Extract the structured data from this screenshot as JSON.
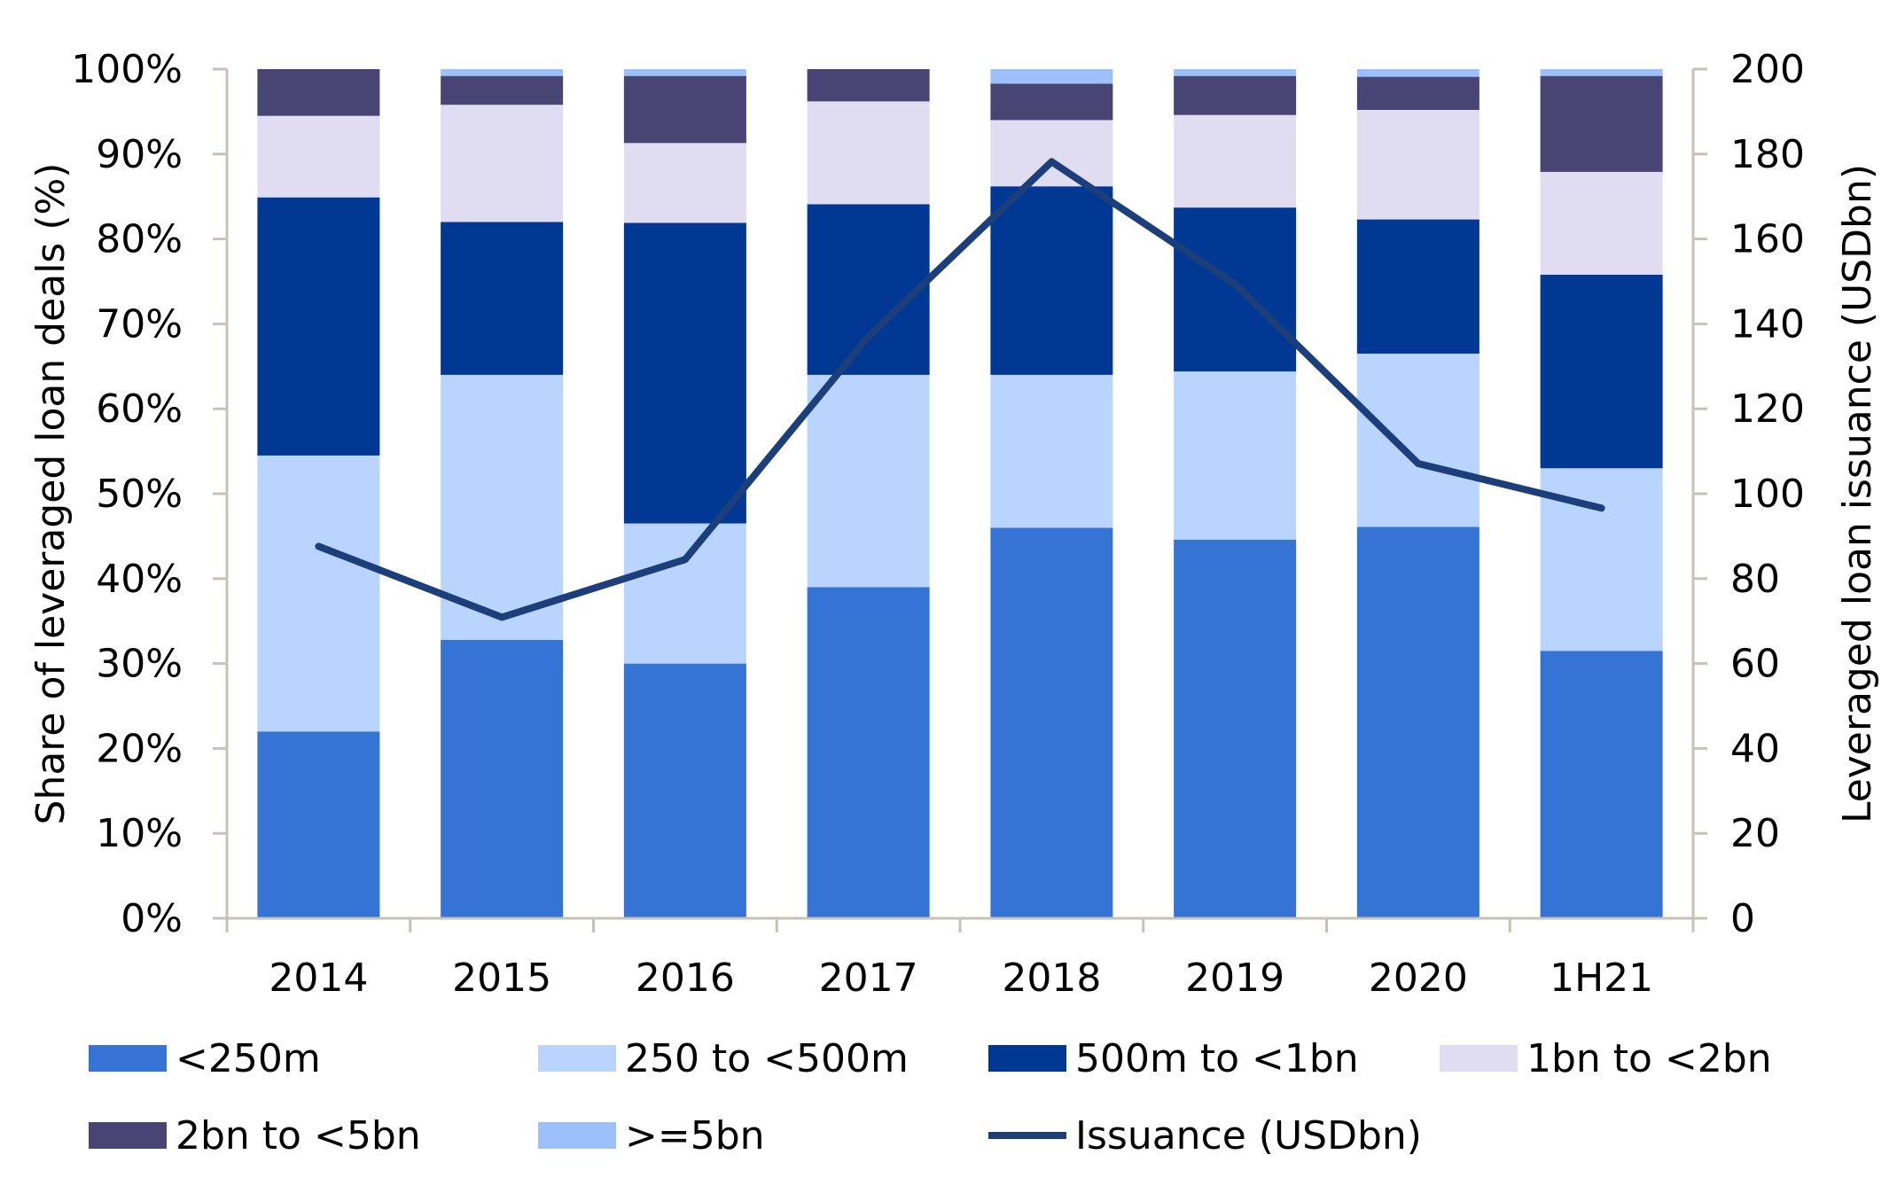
{
  "chart_data": {
    "type": "bar",
    "stacked": true,
    "categories": [
      "2014",
      "2015",
      "2016",
      "2017",
      "2018",
      "2019",
      "2020",
      "1H21"
    ],
    "ylabel": "Share of leveraged loan deals (%)",
    "y2label": "Leveraged loan issuance (USDbn)",
    "ylim": [
      0,
      100
    ],
    "y2lim": [
      0,
      200
    ],
    "yticks": [
      "0%",
      "10%",
      "20%",
      "30%",
      "40%",
      "50%",
      "60%",
      "70%",
      "80%",
      "90%",
      "100%"
    ],
    "y2ticks": [
      "0",
      "20",
      "40",
      "60",
      "80",
      "100",
      "120",
      "140",
      "160",
      "180",
      "200"
    ],
    "grid": false,
    "legend_position": "bottom",
    "series": [
      {
        "name": "<250m",
        "color": "#3574d4",
        "values": [
          22,
          32.8,
          30,
          39,
          46,
          44.6,
          46.1,
          31.5
        ]
      },
      {
        "name": "250 to <500m",
        "color": "#b8d4ff",
        "values": [
          32.5,
          31.2,
          16.5,
          25,
          18,
          19.8,
          20.4,
          21.5
        ]
      },
      {
        "name": "500m to <1bn",
        "color": "#003893",
        "values": [
          30.4,
          18,
          35.4,
          20.1,
          22.2,
          19.3,
          15.8,
          22.8
        ]
      },
      {
        "name": "1bn to <2bn",
        "color": "#e0dcf2",
        "values": [
          9.6,
          13.8,
          9.4,
          12.1,
          7.8,
          10.9,
          12.9,
          12.1
        ]
      },
      {
        "name": "2bn to <5bn",
        "color": "#484575",
        "values": [
          5.5,
          3.4,
          7.9,
          3.8,
          4.3,
          4.6,
          3.9,
          11.3
        ]
      },
      {
        "name": ">=5bn",
        "color": "#9cc1fa",
        "values": [
          0,
          0.8,
          0.8,
          0,
          1.7,
          0.8,
          0.9,
          0.8
        ]
      }
    ],
    "line_series": {
      "name": "Issuance (USDbn)",
      "color": "#1c3f7b",
      "axis": "right",
      "values": [
        87.6,
        70.9,
        84.5,
        137,
        178.2,
        149.4,
        107.1,
        96.6
      ]
    }
  }
}
